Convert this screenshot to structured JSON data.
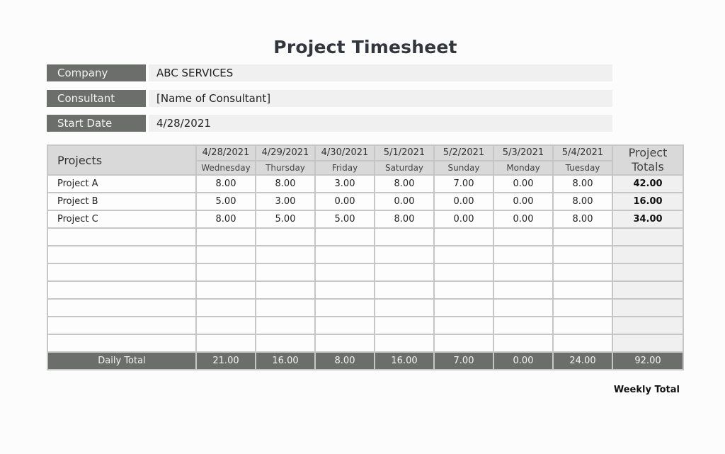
{
  "title": "Project Timesheet",
  "info": {
    "company": {
      "label": "Company",
      "value": "ABC SERVICES"
    },
    "consultant": {
      "label": "Consultant",
      "value": "[Name of Consultant]"
    },
    "start_date": {
      "label": "Start Date",
      "value": "4/28/2021"
    }
  },
  "table": {
    "projects_header": "Projects",
    "totals_header_line1": "Project",
    "totals_header_line2": "Totals",
    "columns": [
      {
        "date": "4/28/2021",
        "day": "Wednesday"
      },
      {
        "date": "4/29/2021",
        "day": "Thursday"
      },
      {
        "date": "4/30/2021",
        "day": "Friday"
      },
      {
        "date": "5/1/2021",
        "day": "Saturday"
      },
      {
        "date": "5/2/2021",
        "day": "Sunday"
      },
      {
        "date": "5/3/2021",
        "day": "Monday"
      },
      {
        "date": "5/4/2021",
        "day": "Tuesday"
      }
    ],
    "rows": [
      {
        "project": "Project A",
        "hours": [
          "8.00",
          "8.00",
          "3.00",
          "8.00",
          "7.00",
          "0.00",
          "8.00"
        ],
        "total": "42.00"
      },
      {
        "project": "Project B",
        "hours": [
          "5.00",
          "3.00",
          "0.00",
          "0.00",
          "0.00",
          "0.00",
          "8.00"
        ],
        "total": "16.00"
      },
      {
        "project": "Project C",
        "hours": [
          "8.00",
          "5.00",
          "5.00",
          "8.00",
          "0.00",
          "0.00",
          "8.00"
        ],
        "total": "34.00"
      },
      {
        "project": "",
        "hours": [
          "",
          "",
          "",
          "",
          "",
          "",
          ""
        ],
        "total": ""
      },
      {
        "project": "",
        "hours": [
          "",
          "",
          "",
          "",
          "",
          "",
          ""
        ],
        "total": ""
      },
      {
        "project": "",
        "hours": [
          "",
          "",
          "",
          "",
          "",
          "",
          ""
        ],
        "total": ""
      },
      {
        "project": "",
        "hours": [
          "",
          "",
          "",
          "",
          "",
          "",
          ""
        ],
        "total": ""
      },
      {
        "project": "",
        "hours": [
          "",
          "",
          "",
          "",
          "",
          "",
          ""
        ],
        "total": ""
      },
      {
        "project": "",
        "hours": [
          "",
          "",
          "",
          "",
          "",
          "",
          ""
        ],
        "total": ""
      },
      {
        "project": "",
        "hours": [
          "",
          "",
          "",
          "",
          "",
          "",
          ""
        ],
        "total": ""
      }
    ],
    "daily_total_label": "Daily Total",
    "daily_totals": [
      "21.00",
      "16.00",
      "8.00",
      "16.00",
      "7.00",
      "0.00",
      "24.00"
    ],
    "weekly_total": "92.00",
    "weekly_total_label": "Weekly Total"
  },
  "colors": {
    "label_bg": "#6b6e6b",
    "header_bg": "#d9d9d9",
    "field_bg": "#f0f0f0",
    "border": "#c6c6c6",
    "title": "#33363d"
  }
}
